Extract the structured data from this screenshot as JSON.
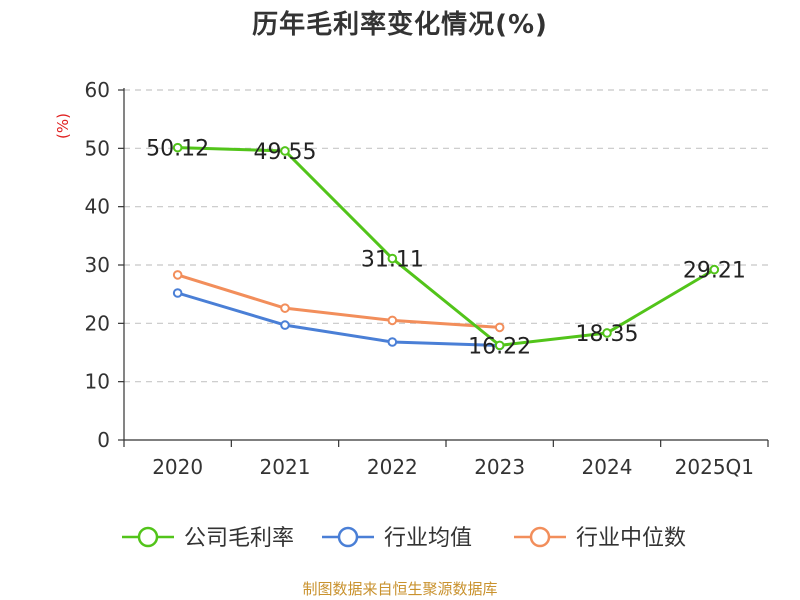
{
  "title": "历年毛利率变化情况(%)",
  "footer": "制图数据来自恒生聚源数据库",
  "chart_data": {
    "type": "line",
    "title": "历年毛利率变化情况(%)",
    "ylabel": "(%)",
    "xlabel": "",
    "ylim": [
      0,
      60
    ],
    "yticks": [
      0,
      10,
      20,
      30,
      40,
      50,
      60
    ],
    "grid": true,
    "legend_position": "bottom",
    "categories": [
      "2020",
      "2021",
      "2022",
      "2023",
      "2024",
      "2025Q1"
    ],
    "series": [
      {
        "name": "公司毛利率",
        "color": "#52c41a",
        "values": [
          50.12,
          49.55,
          31.11,
          16.22,
          18.35,
          29.21
        ],
        "labels": [
          "50.12",
          "49.55",
          "31.11",
          "16.22",
          "18.35",
          "29.21"
        ]
      },
      {
        "name": "行业均值",
        "color": "#4a7fd6",
        "values": [
          25.2,
          19.7,
          16.8,
          16.2,
          null,
          null
        ]
      },
      {
        "name": "行业中位数",
        "color": "#f28e5b",
        "values": [
          28.3,
          22.6,
          20.5,
          19.3,
          null,
          null
        ]
      }
    ],
    "unit_color": "#e02020"
  }
}
